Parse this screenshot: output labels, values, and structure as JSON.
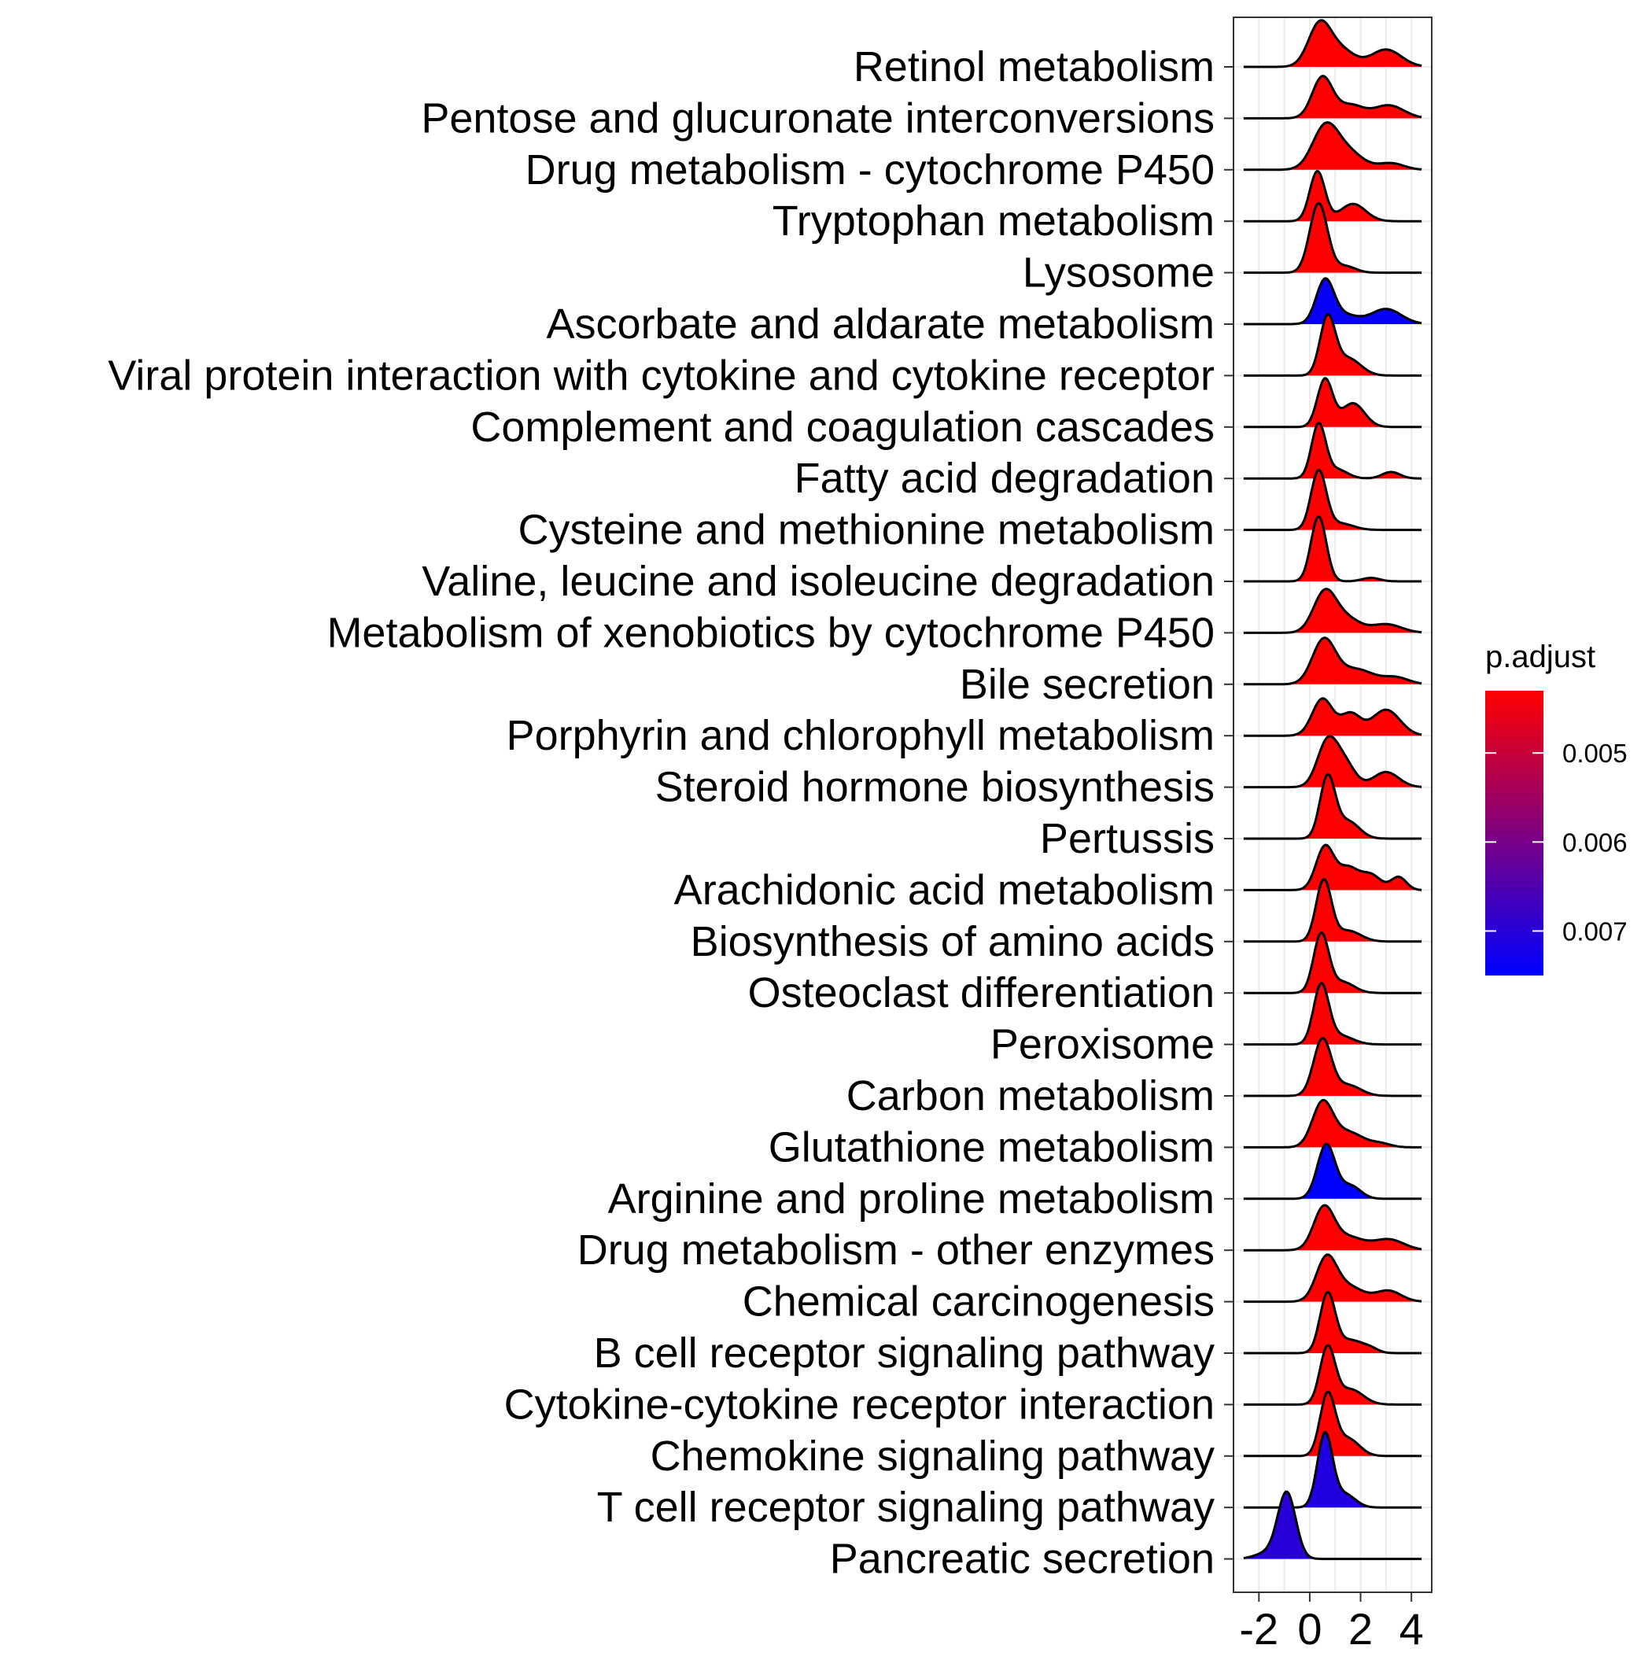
{
  "chart_data": {
    "type": "ridgeline",
    "x_ticks": [
      "-2",
      "0",
      "2",
      "4"
    ],
    "xlim": [
      -3,
      4.8
    ],
    "pathways": [
      {
        "name": "Retinol metabolism",
        "padj": 0.0043,
        "peaks": [
          [
            0.4,
            1.0,
            0.45
          ],
          [
            1.3,
            0.35,
            0.5
          ],
          [
            3.0,
            0.4,
            0.6
          ]
        ]
      },
      {
        "name": "Pentose and glucuronate interconversions",
        "padj": 0.0043,
        "peaks": [
          [
            0.5,
            0.95,
            0.4
          ],
          [
            1.6,
            0.3,
            0.5
          ],
          [
            3.1,
            0.3,
            0.6
          ]
        ]
      },
      {
        "name": "Drug metabolism - cytochrome P450",
        "padj": 0.0043,
        "peaks": [
          [
            0.6,
            0.95,
            0.5
          ],
          [
            1.5,
            0.4,
            0.6
          ],
          [
            3.2,
            0.15,
            0.5
          ]
        ]
      },
      {
        "name": "Tryptophan metabolism",
        "padj": 0.0043,
        "peaks": [
          [
            0.3,
            1.15,
            0.3
          ],
          [
            1.7,
            0.4,
            0.5
          ]
        ]
      },
      {
        "name": "Lysosome",
        "padj": 0.0043,
        "peaks": [
          [
            0.35,
            1.6,
            0.35
          ],
          [
            1.4,
            0.15,
            0.4
          ]
        ]
      },
      {
        "name": "Ascorbate and aldarate metabolism",
        "padj": 0.0074,
        "peaks": [
          [
            0.6,
            1.0,
            0.35
          ],
          [
            1.4,
            0.2,
            0.5
          ],
          [
            3.0,
            0.35,
            0.6
          ]
        ]
      },
      {
        "name": "Viral protein interaction with cytokine and cytokine receptor",
        "padj": 0.0043,
        "peaks": [
          [
            0.7,
            1.3,
            0.3
          ],
          [
            1.5,
            0.4,
            0.5
          ]
        ]
      },
      {
        "name": "Complement and coagulation cascades",
        "padj": 0.0043,
        "peaks": [
          [
            0.6,
            1.1,
            0.3
          ],
          [
            1.7,
            0.55,
            0.45
          ]
        ]
      },
      {
        "name": "Fatty acid degradation",
        "padj": 0.0043,
        "peaks": [
          [
            0.35,
            1.25,
            0.28
          ],
          [
            1.1,
            0.2,
            0.4
          ],
          [
            3.2,
            0.15,
            0.35
          ]
        ]
      },
      {
        "name": "Cysteine and methionine metabolism",
        "padj": 0.0043,
        "peaks": [
          [
            0.35,
            1.35,
            0.3
          ],
          [
            1.2,
            0.15,
            0.5
          ]
        ]
      },
      {
        "name": "Valine, leucine and isoleucine degradation",
        "padj": 0.0043,
        "peaks": [
          [
            0.35,
            1.5,
            0.3
          ],
          [
            2.4,
            0.08,
            0.35
          ]
        ]
      },
      {
        "name": "Metabolism of xenobiotics by cytochrome P450",
        "padj": 0.0043,
        "peaks": [
          [
            0.6,
            0.95,
            0.45
          ],
          [
            1.5,
            0.3,
            0.5
          ],
          [
            3.0,
            0.2,
            0.6
          ]
        ]
      },
      {
        "name": "Bile secretion",
        "padj": 0.0043,
        "peaks": [
          [
            0.55,
            1.0,
            0.45
          ],
          [
            1.8,
            0.35,
            0.7
          ],
          [
            3.4,
            0.15,
            0.5
          ]
        ]
      },
      {
        "name": "Porphyrin and chlorophyll metabolism",
        "padj": 0.0043,
        "peaks": [
          [
            0.5,
            0.85,
            0.4
          ],
          [
            1.6,
            0.5,
            0.4
          ],
          [
            3.0,
            0.6,
            0.55
          ]
        ]
      },
      {
        "name": "Steroid hormone biosynthesis",
        "padj": 0.0043,
        "peaks": [
          [
            0.7,
            1.05,
            0.4
          ],
          [
            1.4,
            0.5,
            0.4
          ],
          [
            3.0,
            0.35,
            0.5
          ]
        ]
      },
      {
        "name": "Pertussis",
        "padj": 0.0043,
        "peaks": [
          [
            0.7,
            1.4,
            0.3
          ],
          [
            1.5,
            0.4,
            0.45
          ]
        ]
      },
      {
        "name": "Arachidonic acid metabolism",
        "padj": 0.0043,
        "peaks": [
          [
            0.6,
            1.0,
            0.35
          ],
          [
            1.5,
            0.5,
            0.4
          ],
          [
            2.4,
            0.35,
            0.4
          ],
          [
            3.5,
            0.3,
            0.3
          ]
        ]
      },
      {
        "name": "Biosynthesis of amino acids",
        "padj": 0.0043,
        "peaks": [
          [
            0.55,
            1.4,
            0.3
          ],
          [
            1.5,
            0.25,
            0.5
          ]
        ]
      },
      {
        "name": "Osteoclast differentiation",
        "padj": 0.0043,
        "peaks": [
          [
            0.45,
            1.35,
            0.3
          ],
          [
            1.3,
            0.25,
            0.45
          ]
        ]
      },
      {
        "name": "Peroxisome",
        "padj": 0.0043,
        "peaks": [
          [
            0.45,
            1.35,
            0.3
          ],
          [
            1.2,
            0.2,
            0.5
          ]
        ]
      },
      {
        "name": "Carbon metabolism",
        "padj": 0.0043,
        "peaks": [
          [
            0.5,
            1.3,
            0.35
          ],
          [
            1.5,
            0.25,
            0.5
          ]
        ]
      },
      {
        "name": "Glutathione metabolism",
        "padj": 0.0043,
        "peaks": [
          [
            0.5,
            1.0,
            0.4
          ],
          [
            1.5,
            0.35,
            0.6
          ],
          [
            2.8,
            0.08,
            0.4
          ]
        ]
      },
      {
        "name": "Arginine and proline metabolism",
        "padj": 0.0075,
        "peaks": [
          [
            0.65,
            1.25,
            0.35
          ],
          [
            1.6,
            0.3,
            0.4
          ]
        ]
      },
      {
        "name": "Drug metabolism - other enzymes",
        "padj": 0.0043,
        "peaks": [
          [
            0.55,
            0.95,
            0.4
          ],
          [
            1.5,
            0.3,
            0.6
          ],
          [
            3.1,
            0.25,
            0.6
          ]
        ]
      },
      {
        "name": "Chemical carcinogenesis",
        "padj": 0.0043,
        "peaks": [
          [
            0.65,
            0.95,
            0.4
          ],
          [
            1.5,
            0.35,
            0.6
          ],
          [
            3.1,
            0.25,
            0.5
          ]
        ]
      },
      {
        "name": "B cell receptor signaling pathway",
        "padj": 0.0043,
        "peaks": [
          [
            0.7,
            1.35,
            0.3
          ],
          [
            1.6,
            0.3,
            0.5
          ],
          [
            2.4,
            0.08,
            0.3
          ]
        ]
      },
      {
        "name": "Cytokine-cytokine receptor interaction",
        "padj": 0.0043,
        "peaks": [
          [
            0.7,
            1.3,
            0.3
          ],
          [
            1.6,
            0.35,
            0.5
          ]
        ]
      },
      {
        "name": "Chemokine signaling pathway",
        "padj": 0.0043,
        "peaks": [
          [
            0.7,
            1.4,
            0.3
          ],
          [
            1.5,
            0.4,
            0.45
          ]
        ]
      },
      {
        "name": "T cell receptor signaling pathway",
        "padj": 0.0071,
        "peaks": [
          [
            0.6,
            1.7,
            0.3
          ],
          [
            1.4,
            0.3,
            0.4
          ]
        ]
      },
      {
        "name": "Pancreatic secretion",
        "padj": 0.007,
        "peaks": [
          [
            -0.9,
            1.5,
            0.35
          ],
          [
            -1.6,
            0.15,
            0.5
          ]
        ]
      }
    ],
    "legend": {
      "title": "p.adjust",
      "ticks": [
        {
          "label": "0.005",
          "value": 0.005
        },
        {
          "label": "0.006",
          "value": 0.006
        },
        {
          "label": "0.007",
          "value": 0.007
        }
      ],
      "range": [
        0.0043,
        0.0075
      ],
      "low_color": "#FF0000",
      "high_color": "#0000FF",
      "position": "right"
    },
    "grid": true
  }
}
